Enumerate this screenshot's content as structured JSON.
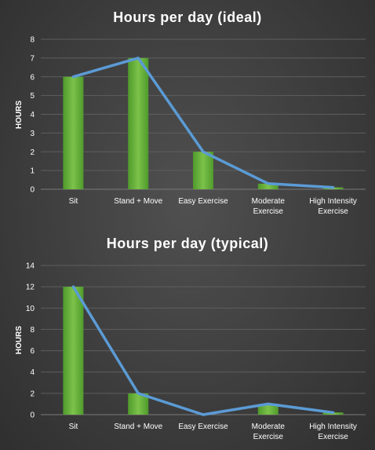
{
  "chart_data": [
    {
      "type": "bar",
      "title": "Hours per day (ideal)",
      "xlabel": "",
      "ylabel": "HOURS",
      "categories": [
        "Sit",
        "Stand + Move",
        "Easy Exercise",
        "Moderate Exercise",
        "High Intensity Exercise"
      ],
      "category_lines": [
        [
          "Sit"
        ],
        [
          "Stand + Move"
        ],
        [
          "Easy Exercise"
        ],
        [
          "Moderate",
          "Exercise"
        ],
        [
          "High Intensity",
          "Exercise"
        ]
      ],
      "series": [
        {
          "values": [
            6,
            7,
            2,
            0.3,
            0.1
          ],
          "render": "bar",
          "color": "#6db33f"
        },
        {
          "values": [
            6,
            7,
            2,
            0.3,
            0.1
          ],
          "render": "line",
          "color": "#5b9bd5"
        }
      ],
      "ylim": [
        0,
        8
      ],
      "yticks": [
        0,
        1,
        2,
        3,
        4,
        5,
        6,
        7,
        8
      ],
      "grid": true,
      "legend": "none"
    },
    {
      "type": "bar",
      "title": "Hours per day (typical)",
      "xlabel": "",
      "ylabel": "HOURS",
      "categories": [
        "Sit",
        "Stand + Move",
        "Easy Exercise",
        "Moderate Exercise",
        "High Intensity Exercise"
      ],
      "category_lines": [
        [
          "Sit"
        ],
        [
          "Stand + Move"
        ],
        [
          "Easy Exercise"
        ],
        [
          "Moderate",
          "Exercise"
        ],
        [
          "High Intensity",
          "Exercise"
        ]
      ],
      "series": [
        {
          "values": [
            12,
            2,
            0,
            1,
            0.2
          ],
          "render": "bar",
          "color": "#6db33f"
        },
        {
          "values": [
            12,
            2,
            0,
            1,
            0.2
          ],
          "render": "line",
          "color": "#5b9bd5"
        }
      ],
      "ylim": [
        0,
        14
      ],
      "yticks": [
        0,
        2,
        4,
        6,
        8,
        10,
        12,
        14
      ],
      "grid": true,
      "legend": "none"
    }
  ]
}
